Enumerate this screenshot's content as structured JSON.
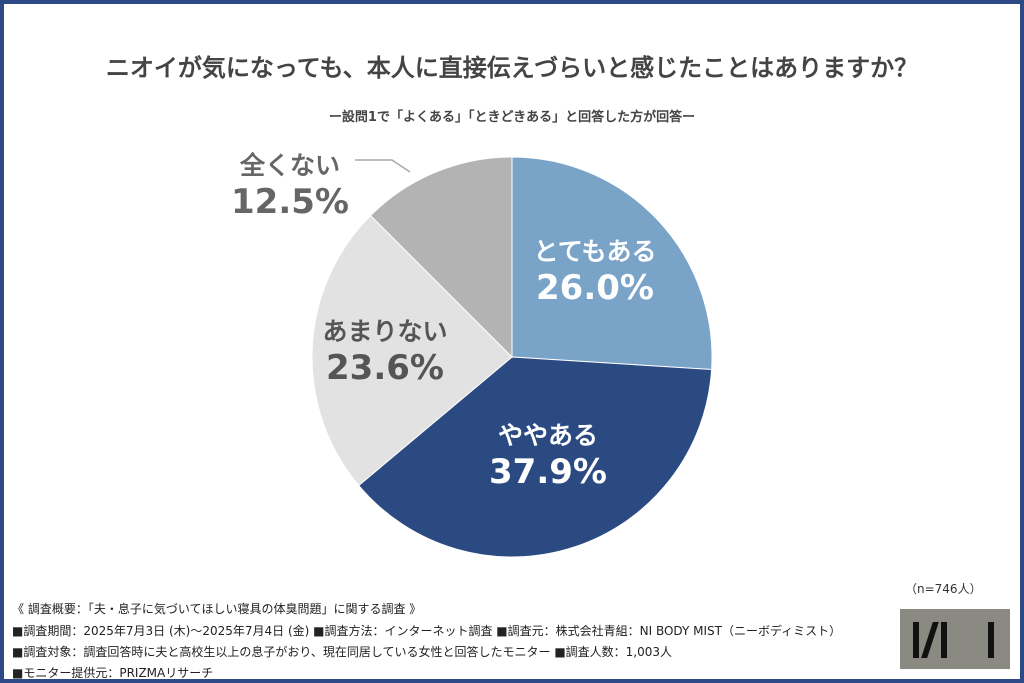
{
  "chart_data": {
    "type": "pie",
    "title": "ニオイが気になっても、本人に直接伝えづらいと感じたことはありますか？",
    "subtitle": "ー設問1で「よくある」「ときどきある」と回答した方が回答ー",
    "slices": [
      {
        "label": "とてもある",
        "value": 26.0,
        "display": "26.0%",
        "color": "#7aa3c8",
        "text_color": "#ffffff"
      },
      {
        "label": "ややある",
        "value": 37.9,
        "display": "37.9%",
        "color": "#2c4a82",
        "text_color": "#ffffff"
      },
      {
        "label": "あまりない",
        "value": 23.6,
        "display": "23.6%",
        "color": "#e2e2e2",
        "text_color": "#555555"
      },
      {
        "label": "全くない",
        "value": 12.5,
        "display": "12.5%",
        "color": "#b3b3b3",
        "text_color": "#666666"
      }
    ],
    "start": "12 o'clock",
    "direction": "clockwise"
  },
  "note": "（n=746人）",
  "footer": [
    "《 調査概要：「夫・息子に気づいてほしい寝具の体臭問題」に関する調査 》",
    "■調査期間：2025年7月3日 (木)〜2025年7月4日 (金) ■調査方法：インターネット調査 ■調査元：株式会社青組：NI BODY MIST（ニーボディミスト）",
    "■調査対象：調査回答時に夫と高校生以上の息子がおり、現在同居している女性と回答したモニター ■調査人数：1,003人",
    "■モニター提供元：PRIZMAリサーチ"
  ],
  "logo_text": "NI",
  "colors": {
    "frame": "#2e4a86"
  }
}
